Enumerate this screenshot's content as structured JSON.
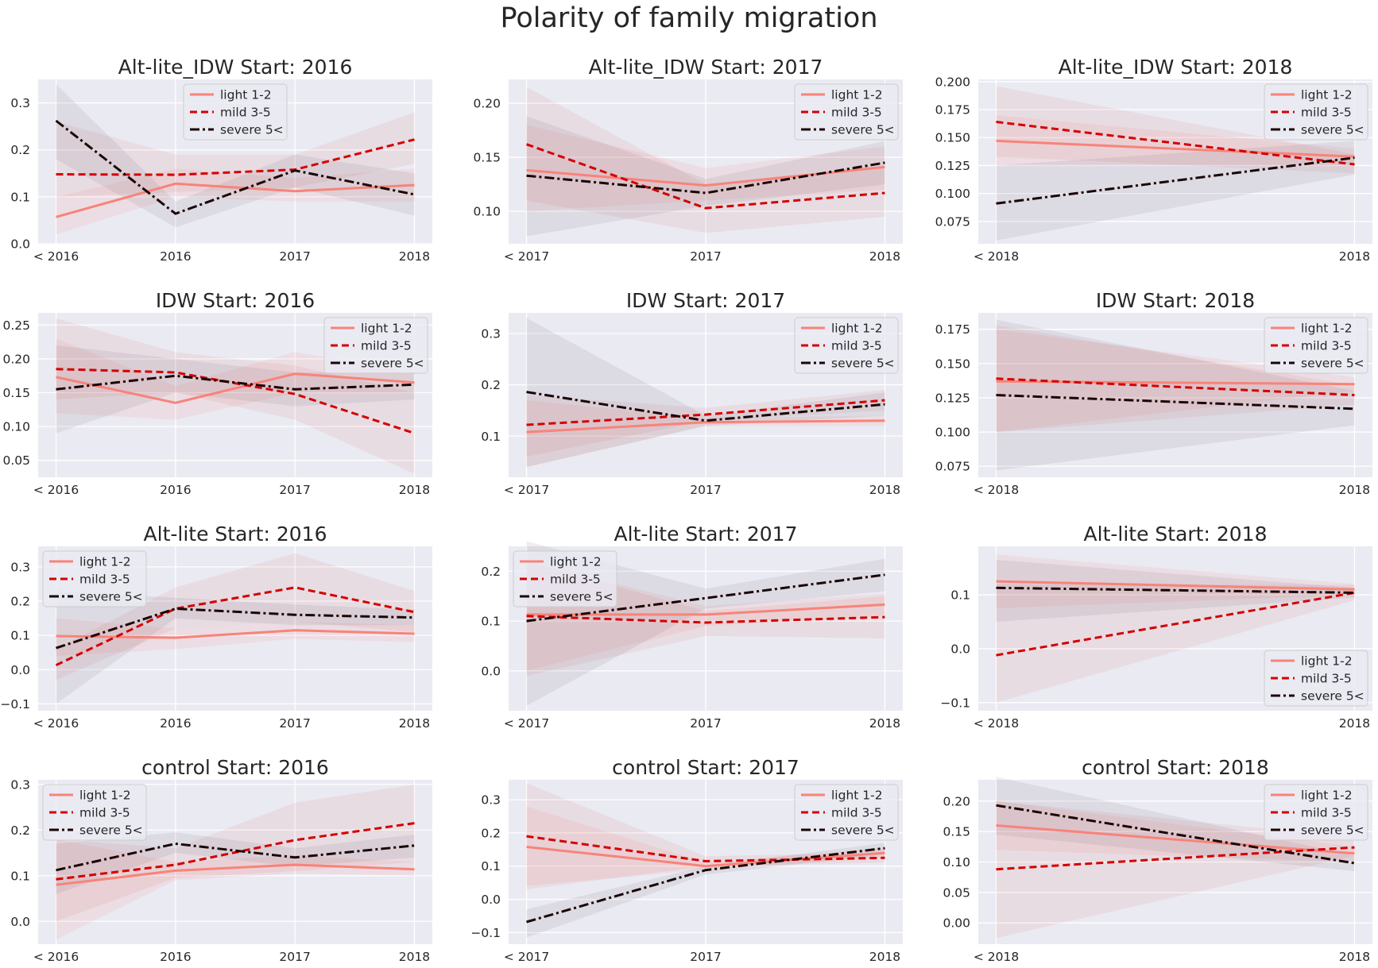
{
  "title": "Polarity of family migration",
  "legend_labels": [
    "light 1-2",
    "mild 3-5",
    "severe 5<"
  ],
  "colors": {
    "light": "#f88379",
    "mild": "#d40000",
    "severe": "#1a0505",
    "axes_bg": "#eaeaf2",
    "grid": "#ffffff"
  },
  "chart_data": [
    {
      "type": "line",
      "title": "Alt-lite_IDW Start: 2016",
      "categories": [
        "< 2016",
        "2016",
        "2017",
        "2018"
      ],
      "ylim": [
        0,
        0.35
      ],
      "yticks": [
        "0.0",
        "0.1",
        "0.2",
        "0.3"
      ],
      "legend": "upper center",
      "series": [
        {
          "name": "light 1-2",
          "values": [
            0.057,
            0.128,
            0.112,
            0.125
          ],
          "lower": [
            0.02,
            0.1,
            0.09,
            0.09
          ],
          "upper": [
            0.1,
            0.16,
            0.14,
            0.16
          ]
        },
        {
          "name": "mild 3-5",
          "values": [
            0.148,
            0.147,
            0.158,
            0.222
          ],
          "lower": [
            0.1,
            0.11,
            0.12,
            0.17
          ],
          "upper": [
            0.26,
            0.19,
            0.19,
            0.28
          ]
        },
        {
          "name": "severe 5<",
          "values": [
            0.262,
            0.064,
            0.156,
            0.105
          ],
          "lower": [
            0.18,
            0.035,
            0.12,
            0.06
          ],
          "upper": [
            0.34,
            0.09,
            0.19,
            0.15
          ]
        }
      ]
    },
    {
      "type": "line",
      "title": "Alt-lite_IDW Start: 2017",
      "categories": [
        "< 2017",
        "2017",
        "2018"
      ],
      "ylim": [
        0.07,
        0.222
      ],
      "yticks": [
        "0.10",
        "0.15",
        "0.20"
      ],
      "legend": "upper right",
      "series": [
        {
          "name": "light 1-2",
          "values": [
            0.138,
            0.124,
            0.141
          ],
          "lower": [
            0.1,
            0.11,
            0.12
          ],
          "upper": [
            0.18,
            0.14,
            0.16
          ]
        },
        {
          "name": "mild 3-5",
          "values": [
            0.162,
            0.103,
            0.117
          ],
          "lower": [
            0.11,
            0.08,
            0.095
          ],
          "upper": [
            0.215,
            0.125,
            0.14
          ]
        },
        {
          "name": "severe 5<",
          "values": [
            0.133,
            0.117,
            0.145
          ],
          "lower": [
            0.077,
            0.105,
            0.125
          ],
          "upper": [
            0.188,
            0.13,
            0.165
          ]
        }
      ]
    },
    {
      "type": "line",
      "title": "Alt-lite_IDW Start: 2018",
      "categories": [
        "< 2018",
        "2018"
      ],
      "ylim": [
        0.055,
        0.202
      ],
      "yticks": [
        "0.075",
        "0.100",
        "0.125",
        "0.150",
        "0.175",
        "0.200"
      ],
      "legend": "upper right",
      "series": [
        {
          "name": "light 1-2",
          "values": [
            0.147,
            0.133
          ],
          "lower": [
            0.125,
            0.125
          ],
          "upper": [
            0.17,
            0.14
          ]
        },
        {
          "name": "mild 3-5",
          "values": [
            0.164,
            0.126
          ],
          "lower": [
            0.133,
            0.118
          ],
          "upper": [
            0.196,
            0.135
          ]
        },
        {
          "name": "severe 5<",
          "values": [
            0.091,
            0.132
          ],
          "lower": [
            0.058,
            0.117
          ],
          "upper": [
            0.125,
            0.147
          ]
        }
      ]
    },
    {
      "type": "line",
      "title": "IDW Start: 2016",
      "categories": [
        "< 2016",
        "2016",
        "2017",
        "2018"
      ],
      "ylim": [
        0.025,
        0.268
      ],
      "yticks": [
        "0.05",
        "0.10",
        "0.15",
        "0.20",
        "0.25"
      ],
      "legend": "upper right",
      "series": [
        {
          "name": "light 1-2",
          "values": [
            0.173,
            0.135,
            0.178,
            0.165
          ],
          "lower": [
            0.12,
            0.11,
            0.15,
            0.15
          ],
          "upper": [
            0.23,
            0.16,
            0.21,
            0.18
          ]
        },
        {
          "name": "mild 3-5",
          "values": [
            0.185,
            0.18,
            0.148,
            0.09
          ],
          "lower": [
            0.14,
            0.15,
            0.11,
            0.03
          ],
          "upper": [
            0.26,
            0.21,
            0.19,
            0.15
          ]
        },
        {
          "name": "severe 5<",
          "values": [
            0.155,
            0.175,
            0.155,
            0.162
          ],
          "lower": [
            0.09,
            0.15,
            0.13,
            0.14
          ],
          "upper": [
            0.22,
            0.2,
            0.18,
            0.18
          ]
        }
      ]
    },
    {
      "type": "line",
      "title": "IDW Start: 2017",
      "categories": [
        "< 2017",
        "2017",
        "2018"
      ],
      "ylim": [
        0.02,
        0.34
      ],
      "yticks": [
        "0.1",
        "0.2",
        "0.3"
      ],
      "legend": "upper right",
      "series": [
        {
          "name": "light 1-2",
          "values": [
            0.108,
            0.127,
            0.13
          ],
          "lower": [
            0.04,
            0.12,
            0.12
          ],
          "upper": [
            0.17,
            0.135,
            0.14
          ]
        },
        {
          "name": "mild 3-5",
          "values": [
            0.122,
            0.142,
            0.17
          ],
          "lower": [
            0.06,
            0.13,
            0.15
          ],
          "upper": [
            0.18,
            0.155,
            0.19
          ]
        },
        {
          "name": "severe 5<",
          "values": [
            0.186,
            0.13,
            0.162
          ],
          "lower": [
            0.04,
            0.12,
            0.14
          ],
          "upper": [
            0.33,
            0.14,
            0.185
          ]
        }
      ]
    },
    {
      "type": "line",
      "title": "IDW Start: 2018",
      "categories": [
        "< 2018",
        "2018"
      ],
      "ylim": [
        0.067,
        0.187
      ],
      "yticks": [
        "0.075",
        "0.100",
        "0.125",
        "0.150",
        "0.175"
      ],
      "legend": "upper right",
      "series": [
        {
          "name": "light 1-2",
          "values": [
            0.137,
            0.135
          ],
          "lower": [
            0.1,
            0.13
          ],
          "upper": [
            0.175,
            0.14
          ]
        },
        {
          "name": "mild 3-5",
          "values": [
            0.139,
            0.127
          ],
          "lower": [
            0.1,
            0.12
          ],
          "upper": [
            0.178,
            0.134
          ]
        },
        {
          "name": "severe 5<",
          "values": [
            0.127,
            0.117
          ],
          "lower": [
            0.072,
            0.105
          ],
          "upper": [
            0.182,
            0.13
          ]
        }
      ]
    },
    {
      "type": "line",
      "title": "Alt-lite Start: 2016",
      "categories": [
        "< 2016",
        "2016",
        "2017",
        "2018"
      ],
      "ylim": [
        -0.12,
        0.36
      ],
      "yticks": [
        "−0.1",
        "0.0",
        "0.1",
        "0.2",
        "0.3"
      ],
      "legend": "upper left",
      "series": [
        {
          "name": "light 1-2",
          "values": [
            0.098,
            0.093,
            0.115,
            0.105
          ],
          "lower": [
            0.04,
            0.06,
            0.09,
            0.08
          ],
          "upper": [
            0.15,
            0.12,
            0.14,
            0.13
          ]
        },
        {
          "name": "mild 3-5",
          "values": [
            0.013,
            0.178,
            0.24,
            0.168
          ],
          "lower": [
            -0.03,
            0.12,
            0.14,
            0.11
          ],
          "upper": [
            0.06,
            0.24,
            0.34,
            0.23
          ]
        },
        {
          "name": "severe 5<",
          "values": [
            0.063,
            0.178,
            0.16,
            0.152
          ],
          "lower": [
            -0.1,
            0.15,
            0.13,
            0.13
          ],
          "upper": [
            0.23,
            0.21,
            0.19,
            0.175
          ]
        }
      ]
    },
    {
      "type": "line",
      "title": "Alt-lite Start: 2017",
      "categories": [
        "< 2017",
        "2017",
        "2018"
      ],
      "ylim": [
        -0.08,
        0.25
      ],
      "yticks": [
        "0.0",
        "0.1",
        "0.2"
      ],
      "legend": "upper left",
      "series": [
        {
          "name": "light 1-2",
          "values": [
            0.113,
            0.113,
            0.133
          ],
          "lower": [
            0.0,
            0.09,
            0.11
          ],
          "upper": [
            0.22,
            0.13,
            0.155
          ]
        },
        {
          "name": "mild 3-5",
          "values": [
            0.11,
            0.097,
            0.108
          ],
          "lower": [
            -0.01,
            0.07,
            0.065
          ],
          "upper": [
            0.22,
            0.12,
            0.15
          ]
        },
        {
          "name": "severe 5<",
          "values": [
            0.1,
            0.146,
            0.193
          ],
          "lower": [
            -0.07,
            0.125,
            0.16
          ],
          "upper": [
            0.26,
            0.165,
            0.225
          ]
        }
      ]
    },
    {
      "type": "line",
      "title": "Alt-lite Start: 2018",
      "categories": [
        "< 2018",
        "2018"
      ],
      "ylim": [
        -0.115,
        0.19
      ],
      "yticks": [
        "−0.1",
        "0.0",
        "0.1"
      ],
      "legend": "lower right",
      "series": [
        {
          "name": "light 1-2",
          "values": [
            0.125,
            0.11
          ],
          "lower": [
            0.075,
            0.1
          ],
          "upper": [
            0.175,
            0.12
          ]
        },
        {
          "name": "mild 3-5",
          "values": [
            -0.012,
            0.104
          ],
          "lower": [
            -0.1,
            0.09
          ],
          "upper": [
            0.12,
            0.118
          ]
        },
        {
          "name": "severe 5<",
          "values": [
            0.113,
            0.104
          ],
          "lower": [
            0.05,
            0.095
          ],
          "upper": [
            0.165,
            0.113
          ]
        }
      ]
    },
    {
      "type": "line",
      "title": "control Start: 2016",
      "categories": [
        "< 2016",
        "2016",
        "2017",
        "2018"
      ],
      "ylim": [
        -0.05,
        0.31
      ],
      "yticks": [
        "0.0",
        "0.1",
        "0.2",
        "0.3"
      ],
      "legend": "upper left",
      "series": [
        {
          "name": "light 1-2",
          "values": [
            0.08,
            0.111,
            0.124,
            0.114
          ],
          "lower": [
            -0.04,
            0.09,
            0.105,
            0.1
          ],
          "upper": [
            0.18,
            0.13,
            0.145,
            0.13
          ]
        },
        {
          "name": "mild 3-5",
          "values": [
            0.092,
            0.124,
            0.178,
            0.215
          ],
          "lower": [
            0.0,
            0.095,
            0.11,
            0.13
          ],
          "upper": [
            0.18,
            0.16,
            0.26,
            0.3
          ]
        },
        {
          "name": "severe 5<",
          "values": [
            0.112,
            0.17,
            0.14,
            0.166
          ],
          "lower": [
            0.06,
            0.15,
            0.12,
            0.14
          ],
          "upper": [
            0.17,
            0.195,
            0.16,
            0.19
          ]
        }
      ]
    },
    {
      "type": "line",
      "title": "control Start: 2017",
      "categories": [
        "< 2017",
        "2017",
        "2018"
      ],
      "ylim": [
        -0.135,
        0.36
      ],
      "yticks": [
        "−0.1",
        "0.0",
        "0.1",
        "0.2",
        "0.3"
      ],
      "legend": "upper right",
      "series": [
        {
          "name": "light 1-2",
          "values": [
            0.158,
            0.1,
            0.14
          ],
          "lower": [
            0.04,
            0.09,
            0.125
          ],
          "upper": [
            0.28,
            0.11,
            0.155
          ]
        },
        {
          "name": "mild 3-5",
          "values": [
            0.19,
            0.115,
            0.125
          ],
          "lower": [
            0.03,
            0.1,
            0.11
          ],
          "upper": [
            0.35,
            0.13,
            0.14
          ]
        },
        {
          "name": "severe 5<",
          "values": [
            -0.068,
            0.088,
            0.154
          ],
          "lower": [
            -0.115,
            0.075,
            0.135
          ],
          "upper": [
            -0.03,
            0.1,
            0.17
          ]
        }
      ]
    },
    {
      "type": "line",
      "title": "control Start: 2018",
      "categories": [
        "< 2018",
        "2018"
      ],
      "ylim": [
        -0.035,
        0.235
      ],
      "yticks": [
        "0.00",
        "0.05",
        "0.10",
        "0.15",
        "0.20"
      ],
      "legend": "upper right",
      "series": [
        {
          "name": "light 1-2",
          "values": [
            0.16,
            0.114
          ],
          "lower": [
            0.12,
            0.1
          ],
          "upper": [
            0.2,
            0.125
          ]
        },
        {
          "name": "mild 3-5",
          "values": [
            0.088,
            0.124
          ],
          "lower": [
            -0.025,
            0.11
          ],
          "upper": [
            0.2,
            0.14
          ]
        },
        {
          "name": "severe 5<",
          "values": [
            0.193,
            0.098
          ],
          "lower": [
            0.145,
            0.085
          ],
          "upper": [
            0.24,
            0.11
          ]
        }
      ]
    }
  ]
}
